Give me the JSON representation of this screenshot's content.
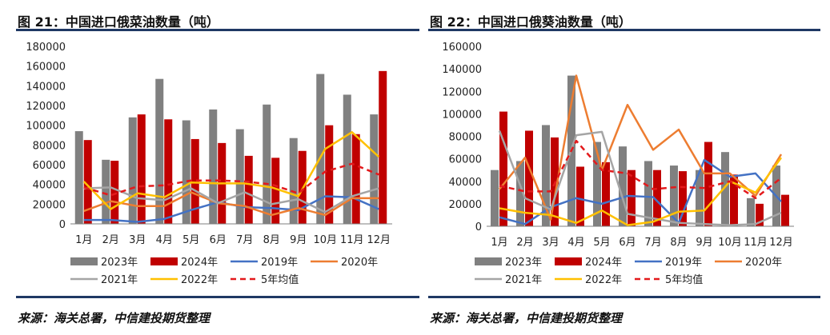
{
  "left": {
    "title": "图 21：中国进口俄菜油数量（吨）",
    "source": "来源：海关总署，中信建投期货整理"
  },
  "right": {
    "title": "图 22：中国进口俄葵油数量（吨）",
    "source": "来源：海关总署，中信建投期货整理"
  },
  "chart_data": [
    {
      "type": "bar",
      "title": "图 21：中国进口俄菜油数量（吨）",
      "categories": [
        "1月",
        "2月",
        "3月",
        "4月",
        "5月",
        "6月",
        "7月",
        "8月",
        "9月",
        "10月",
        "11月",
        "12月"
      ],
      "ylim": [
        0,
        180000
      ],
      "yticks": [
        0,
        20000,
        40000,
        60000,
        80000,
        100000,
        120000,
        140000,
        160000,
        180000
      ],
      "bars": [
        {
          "name": "2023年",
          "color": "#808080",
          "values": [
            94000,
            65000,
            108000,
            147000,
            105000,
            116000,
            96000,
            121000,
            87000,
            152000,
            131000,
            111000
          ]
        },
        {
          "name": "2024年",
          "color": "#c00000",
          "values": [
            85000,
            64000,
            111000,
            106000,
            86000,
            82000,
            69000,
            67000,
            74000,
            100000,
            91000,
            155000
          ]
        }
      ],
      "lines": [
        {
          "name": "2019年",
          "color": "#4472c4",
          "dashed": false,
          "values": [
            4000,
            4000,
            2000,
            5000,
            14000,
            22000,
            17000,
            16000,
            14000,
            28000,
            27000,
            15000
          ]
        },
        {
          "name": "2020年",
          "color": "#ed7d31",
          "dashed": false,
          "values": [
            13000,
            23000,
            18000,
            18000,
            32000,
            21000,
            18000,
            9000,
            16000,
            9000,
            26000,
            26000
          ]
        },
        {
          "name": "2021年",
          "color": "#a5a5a5",
          "dashed": false,
          "values": [
            36000,
            37000,
            26000,
            24000,
            36000,
            21000,
            32000,
            20000,
            25000,
            12000,
            28000,
            36000
          ]
        },
        {
          "name": "2022年",
          "color": "#ffc000",
          "dashed": false,
          "values": [
            43000,
            15000,
            31000,
            27000,
            42000,
            41000,
            41000,
            37000,
            28000,
            76000,
            93000,
            68000
          ]
        },
        {
          "name": "5年均值",
          "color": "#e31a1c",
          "dashed": true,
          "values": [
            37000,
            29000,
            38000,
            39000,
            44000,
            44000,
            43000,
            40000,
            31000,
            53000,
            61000,
            50000
          ]
        }
      ],
      "legend": [
        "2023年",
        "2024年",
        "2019年",
        "2020年",
        "2021年",
        "2022年",
        "5年均值"
      ]
    },
    {
      "type": "bar",
      "title": "图 22：中国进口俄葵油数量（吨）",
      "categories": [
        "1月",
        "2月",
        "3月",
        "4月",
        "5月",
        "6月",
        "7月",
        "8月",
        "9月",
        "10月",
        "11月",
        "12月"
      ],
      "ylim": [
        0,
        160000
      ],
      "yticks": [
        0,
        20000,
        40000,
        60000,
        80000,
        100000,
        120000,
        140000,
        160000
      ],
      "bars": [
        {
          "name": "2023年",
          "color": "#808080",
          "values": [
            50000,
            58000,
            90000,
            134000,
            75000,
            71000,
            58000,
            54000,
            50000,
            66000,
            25000,
            54000
          ]
        },
        {
          "name": "2024年",
          "color": "#c00000",
          "values": [
            102000,
            85000,
            79000,
            53000,
            57000,
            50000,
            50000,
            49000,
            75000,
            46000,
            20000,
            28000
          ]
        }
      ],
      "lines": [
        {
          "name": "2019年",
          "color": "#4472c4",
          "dashed": false,
          "values": [
            8000,
            2000,
            17000,
            25000,
            20000,
            27000,
            26000,
            3000,
            59000,
            44000,
            47000,
            22000
          ]
        },
        {
          "name": "2020年",
          "color": "#ed7d31",
          "dashed": false,
          "values": [
            33000,
            61000,
            6000,
            134000,
            50000,
            108000,
            68000,
            86000,
            47000,
            47000,
            27000,
            64000
          ]
        },
        {
          "name": "2021年",
          "color": "#a5a5a5",
          "dashed": false,
          "values": [
            85000,
            25000,
            15000,
            81000,
            84000,
            11000,
            7000,
            3000,
            2000,
            1000,
            2000,
            12000
          ]
        },
        {
          "name": "2022年",
          "color": "#ffc000",
          "dashed": false,
          "values": [
            16000,
            12000,
            10000,
            3000,
            14000,
            1000,
            4000,
            13000,
            14000,
            40000,
            30000,
            61000
          ]
        },
        {
          "name": "5年均值",
          "color": "#e31a1c",
          "dashed": true,
          "values": [
            36000,
            31000,
            31000,
            76000,
            50000,
            47000,
            33000,
            35000,
            34000,
            40000,
            25000,
            43000
          ]
        }
      ],
      "legend": [
        "2023年",
        "2024年",
        "2019年",
        "2020年",
        "2021年",
        "2022年",
        "5年均值"
      ]
    }
  ]
}
